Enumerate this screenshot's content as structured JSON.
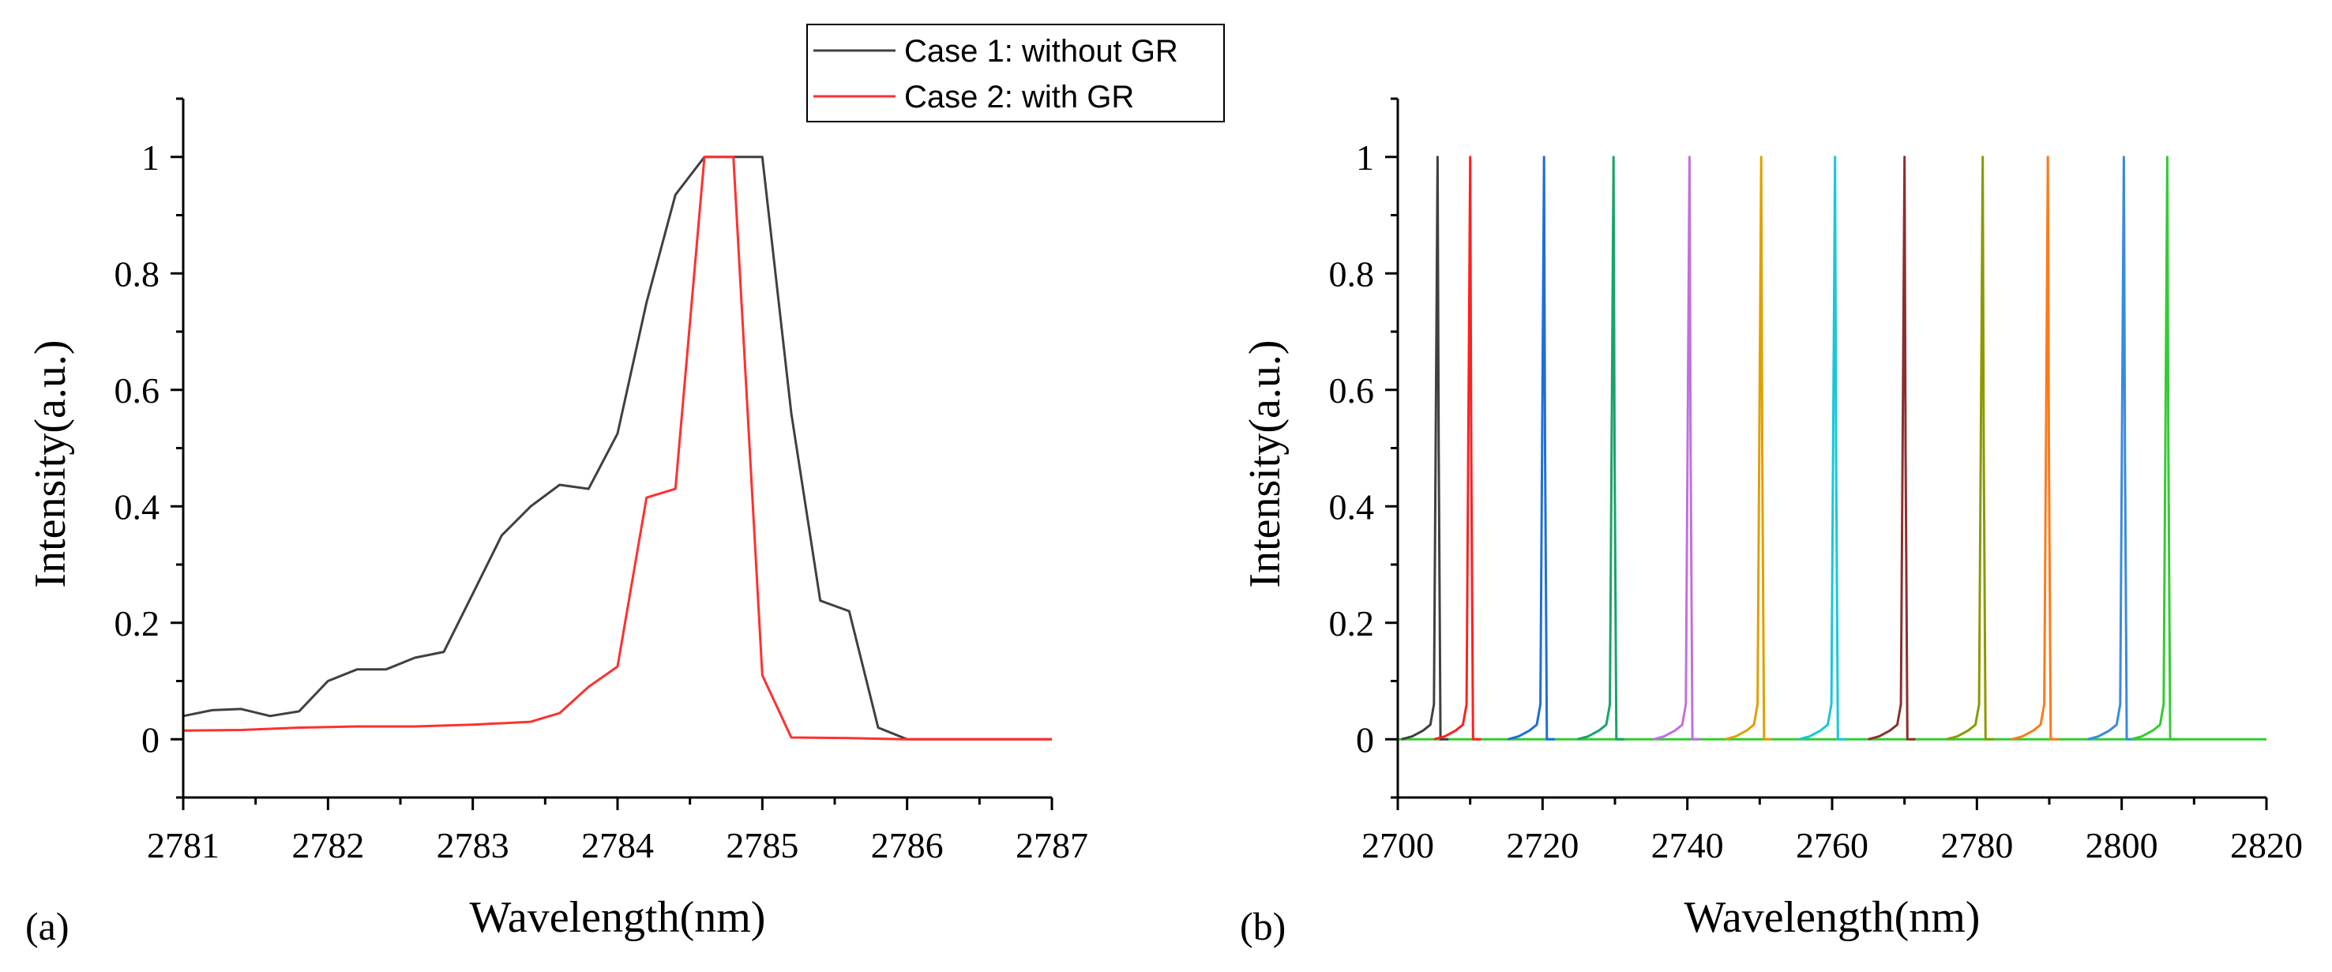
{
  "chart_data": [
    {
      "type": "line",
      "panel_label": "(a)",
      "xlabel": "Wavelength(nm)",
      "ylabel": "Intensity(a.u.)",
      "xlim": [
        2781,
        2787
      ],
      "ylim": [
        -0.1,
        1.1
      ],
      "xticks": [
        2781,
        2782,
        2783,
        2784,
        2785,
        2786,
        2787
      ],
      "yticks": [
        0,
        0.2,
        0.4,
        0.6,
        0.8,
        1
      ],
      "ytick_labels": [
        "0",
        "0.2",
        "0.4",
        "0.6",
        "0.8",
        "1"
      ],
      "grid": false,
      "legend": "top-center",
      "series": [
        {
          "name": "Case 1: without GR",
          "color": "#404040",
          "x": [
            2781.0,
            2781.2,
            2781.4,
            2781.6,
            2781.8,
            2782.0,
            2782.2,
            2782.4,
            2782.6,
            2782.8,
            2783.0,
            2783.2,
            2783.4,
            2783.6,
            2783.8,
            2784.0,
            2784.2,
            2784.4,
            2784.6,
            2784.8,
            2785.0,
            2785.2,
            2785.4,
            2785.6,
            2785.8,
            2786.0,
            2787.0
          ],
          "values": [
            0.04,
            0.05,
            0.052,
            0.04,
            0.048,
            0.1,
            0.12,
            0.12,
            0.14,
            0.15,
            0.25,
            0.35,
            0.4,
            0.437,
            0.43,
            0.525,
            0.75,
            0.935,
            1.0,
            1.0,
            1.0,
            0.56,
            0.238,
            0.22,
            0.02,
            0.0,
            0.0
          ]
        },
        {
          "name": "Case 2: with GR",
          "color": "#ff3030",
          "x": [
            2781.0,
            2781.4,
            2781.8,
            2782.2,
            2782.6,
            2783.0,
            2783.4,
            2783.6,
            2783.8,
            2784.0,
            2784.2,
            2784.4,
            2784.6,
            2784.8,
            2785.0,
            2785.2,
            2785.6,
            2786.0,
            2787.0
          ],
          "values": [
            0.015,
            0.016,
            0.02,
            0.022,
            0.022,
            0.025,
            0.03,
            0.045,
            0.09,
            0.125,
            0.415,
            0.43,
            1.0,
            1.0,
            0.11,
            0.003,
            0.002,
            0.0,
            0.0
          ]
        }
      ]
    },
    {
      "type": "line",
      "panel_label": "(b)",
      "xlabel": "Wavelength(nm)",
      "ylabel": "Intensity(a.u.)",
      "xlim": [
        2700,
        2820
      ],
      "ylim": [
        -0.1,
        1.1
      ],
      "xticks": [
        2700,
        2720,
        2740,
        2760,
        2780,
        2800,
        2820
      ],
      "yticks": [
        0,
        0.2,
        0.4,
        0.6,
        0.8,
        1
      ],
      "ytick_labels": [
        "0",
        "0.2",
        "0.4",
        "0.6",
        "0.8",
        "1"
      ],
      "grid": false,
      "peaks": [
        {
          "center": 2705.5,
          "color": "#404040"
        },
        {
          "center": 2710.0,
          "color": "#ff2020"
        },
        {
          "center": 2720.2,
          "color": "#1f6fd6"
        },
        {
          "center": 2729.8,
          "color": "#1aa36a"
        },
        {
          "center": 2740.3,
          "color": "#c070e0"
        },
        {
          "center": 2750.2,
          "color": "#e0a000"
        },
        {
          "center": 2760.4,
          "color": "#18c8d8"
        },
        {
          "center": 2770.0,
          "color": "#8a3030"
        },
        {
          "center": 2780.8,
          "color": "#8a9a00"
        },
        {
          "center": 2789.8,
          "color": "#ff7a1a"
        },
        {
          "center": 2800.3,
          "color": "#3a8ae0"
        },
        {
          "center": 2806.3,
          "color": "#33cc33"
        }
      ]
    }
  ]
}
